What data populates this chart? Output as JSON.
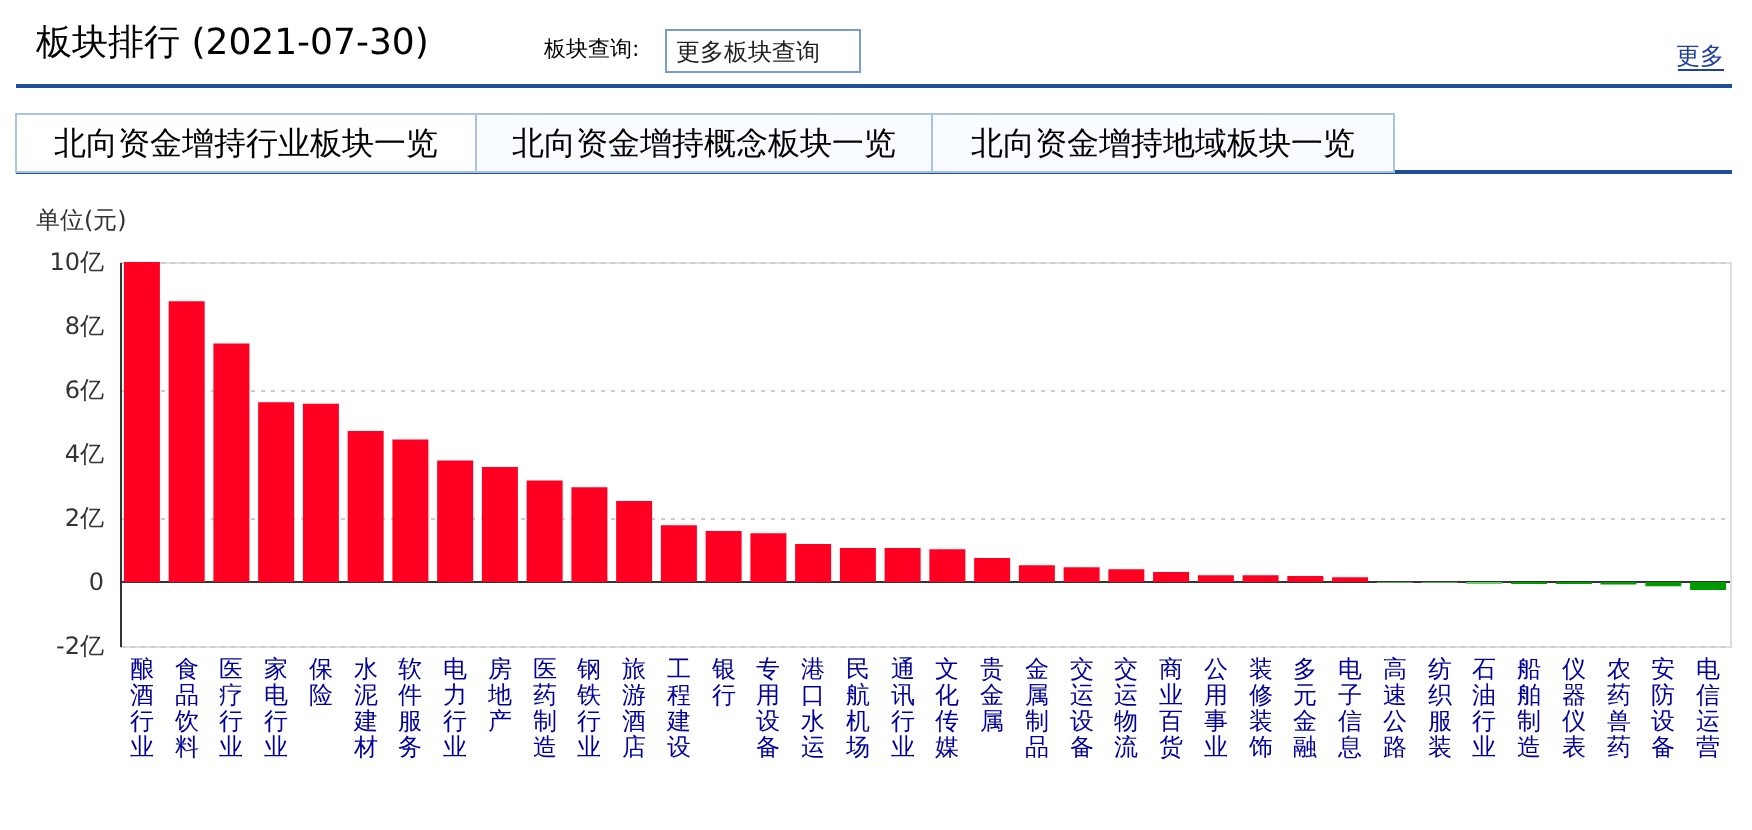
{
  "chart_data": {
    "type": "bar",
    "title": "板块排行 (2021-07-30)",
    "ylabel": "单位(元)",
    "annotations": [
      "板块查询:",
      "更多板块查询",
      "更多",
      "北向资金增持行业板块一览",
      "北向资金增持概念板块一览",
      "北向资金增持地域板块一览"
    ],
    "categories": [
      "酿酒行业",
      "食品饮料",
      "医疗行业",
      "家电行业",
      "保险",
      "水泥建材",
      "软件服务",
      "电力行业",
      "房地产",
      "医药制造",
      "钢铁行业",
      "旅游酒店",
      "工程建设",
      "银行",
      "专用设备",
      "港口水运",
      "民航机场",
      "通讯行业",
      "文化传媒",
      "贵金属",
      "金属制品",
      "交运设备",
      "交运物流",
      "商业百货",
      "公用事业",
      "装修装饰",
      "多元金融",
      "电子信息",
      "高速公路",
      "纺织服装",
      "石油行业",
      "船舶制造",
      "仪器仪表",
      "农药兽药",
      "安防设备",
      "电信运营"
    ],
    "values": [
      10.0,
      8.77,
      7.45,
      5.62,
      5.57,
      4.72,
      4.45,
      3.8,
      3.59,
      3.17,
      2.96,
      2.53,
      1.77,
      1.59,
      1.52,
      1.19,
      1.06,
      1.06,
      1.02,
      0.75,
      0.52,
      0.46,
      0.4,
      0.31,
      0.21,
      0.21,
      0.19,
      0.15,
      -0.02,
      -0.02,
      -0.06,
      -0.06,
      -0.06,
      -0.08,
      -0.13,
      -0.25
    ],
    "colors": [
      "#ff0022",
      "#ff0022",
      "#ff0022",
      "#ff0022",
      "#ff0022",
      "#ff0022",
      "#ff0022",
      "#ff0022",
      "#ff0022",
      "#ff0022",
      "#ff0022",
      "#ff0022",
      "#ff0022",
      "#ff0022",
      "#ff0022",
      "#ff0022",
      "#ff0022",
      "#ff0022",
      "#ff0022",
      "#ff0022",
      "#ff0022",
      "#ff0022",
      "#ff0022",
      "#ff0022",
      "#ff0022",
      "#ff0022",
      "#ff0022",
      "#ff0022",
      "#66cc66",
      "#66cc66",
      "#66cc66",
      "#009900",
      "#009900",
      "#009900",
      "#009900",
      "#009900"
    ],
    "ylim": [
      -2,
      10
    ],
    "yticks": [
      {
        "value": -2,
        "label": "-2亿"
      },
      0,
      {
        "value": 2,
        "label": "2亿"
      },
      {
        "value": 4,
        "label": "4亿"
      },
      {
        "value": 6,
        "label": "6亿"
      },
      {
        "value": 8,
        "label": "8亿"
      },
      {
        "value": 10,
        "label": "10亿"
      }
    ],
    "grid": "y"
  }
}
